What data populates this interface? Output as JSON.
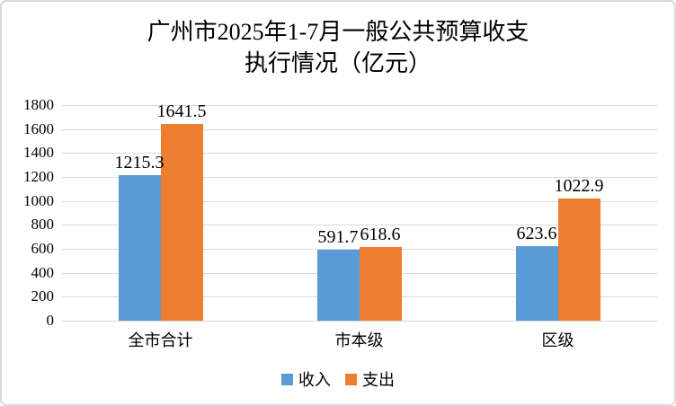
{
  "chart": {
    "title_line1": "广州市2025年1-7月一般公共预算收支",
    "title_line2": "执行情况（亿元）"
  },
  "chart_data": {
    "type": "bar",
    "title": "广州市2025年1-7月一般公共预算收支执行情况（亿元）",
    "categories": [
      "全市合计",
      "市本级",
      "区级"
    ],
    "series": [
      {
        "name": "收入",
        "values": [
          1215.3,
          591.7,
          623.6
        ],
        "color": "#5B9BD5"
      },
      {
        "name": "支出",
        "values": [
          1641.5,
          618.6,
          1022.9
        ],
        "color": "#ED7D31"
      }
    ],
    "xlabel": "",
    "ylabel": "",
    "ylim": [
      0,
      1800
    ],
    "ytick_step": 200,
    "grid": true,
    "grid_color": "#D9D9D9",
    "legend_position": "bottom",
    "value_labels": true
  }
}
